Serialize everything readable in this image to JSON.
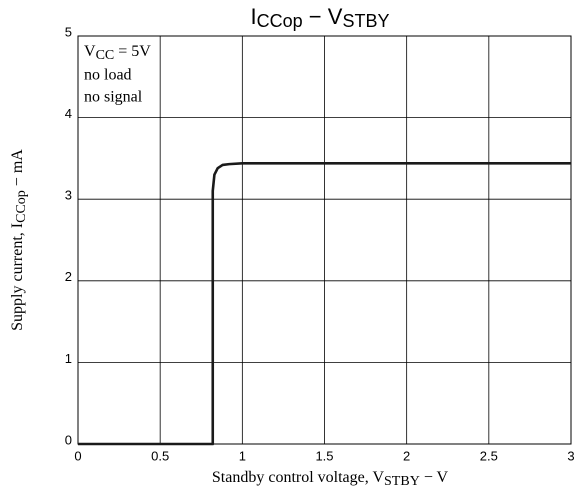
{
  "chart_data": {
    "type": "line",
    "title": [
      "I",
      "CCop",
      " − V",
      "STBY"
    ],
    "x_label": [
      "Standby control voltage, V",
      "STBY",
      " − V"
    ],
    "y_label": [
      "Supply current, I",
      "CCop",
      " − mA"
    ],
    "annotations": [
      [
        "V",
        "CC",
        " = 5V"
      ],
      "no load",
      "no signal"
    ],
    "x": [
      0,
      0.82,
      0.82,
      0.83,
      0.85,
      0.88,
      0.92,
      1.0,
      3
    ],
    "series": [
      {
        "color": "#1a1a1a",
        "values": [
          0,
          0,
          3.1,
          3.3,
          3.38,
          3.42,
          3.43,
          3.44,
          3.44
        ]
      }
    ],
    "xlim": [
      0,
      3
    ],
    "ylim": [
      0,
      5
    ],
    "xticks": [
      0,
      0.5,
      1,
      1.5,
      2,
      2.5,
      3
    ],
    "yticks": [
      0,
      1,
      2,
      3,
      4,
      5
    ],
    "grid": true
  }
}
